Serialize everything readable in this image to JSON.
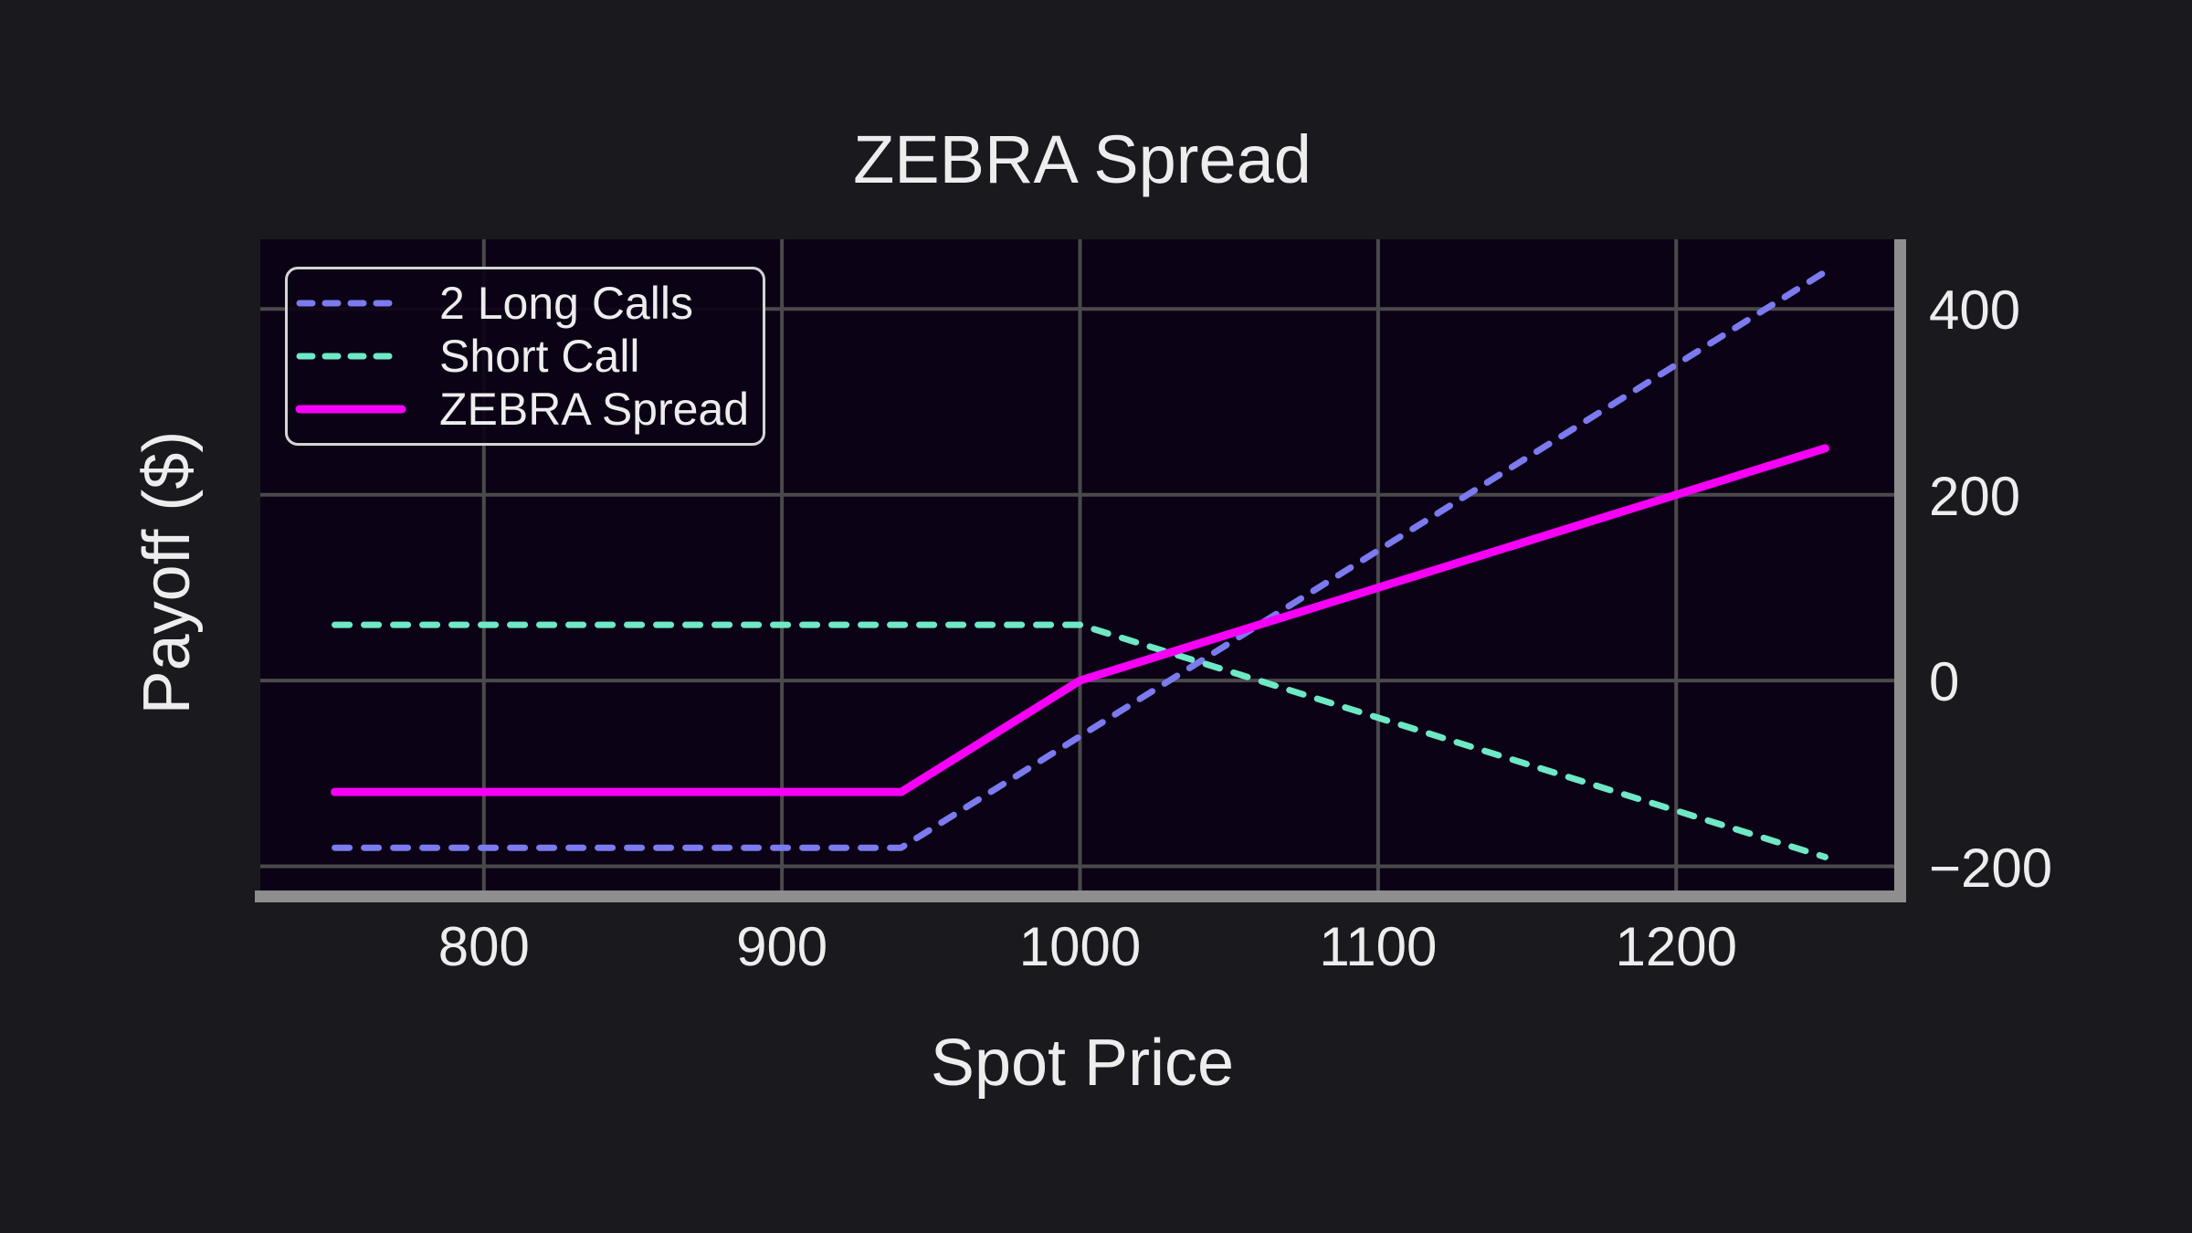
{
  "title": "ZEBRA Spread",
  "axes": {
    "xlabel": "Spot Price",
    "ylabel": "Payoff ($)"
  },
  "legend": {
    "position": "upper left",
    "items": [
      {
        "label": "2 Long Calls",
        "color": "#7b7aee",
        "style": "dashed"
      },
      {
        "label": "Short Call",
        "color": "#6ee8c5",
        "style": "dashed"
      },
      {
        "label": "ZEBRA Spread",
        "color": "#f700f7",
        "style": "solid"
      }
    ]
  },
  "chart_data": {
    "type": "line",
    "title": "ZEBRA Spread",
    "xlabel": "Spot Price",
    "ylabel": "Payoff ($)",
    "xlim": [
      725,
      1275
    ],
    "ylim": [
      -226,
      475
    ],
    "x_ticks": [
      800,
      900,
      1000,
      1100,
      1200
    ],
    "x_tick_labels": [
      "800",
      "900",
      "1000",
      "1100",
      "1200"
    ],
    "y_ticks": [
      400,
      200,
      0,
      -200
    ],
    "y_tick_labels": [
      "400",
      "200",
      "0",
      "−200"
    ],
    "y_axis_side": "right",
    "grid": true,
    "legend_position": "upper left",
    "series": [
      {
        "name": "2 Long Calls",
        "color": "#7b7aee",
        "style": "dashed",
        "width": 7,
        "points": [
          [
            750,
            -180
          ],
          [
            940,
            -180
          ],
          [
            1250,
            440
          ]
        ]
      },
      {
        "name": "Short Call",
        "color": "#6ee8c5",
        "style": "dashed",
        "width": 7,
        "points": [
          [
            750,
            60
          ],
          [
            1000,
            60
          ],
          [
            1250,
            -190
          ]
        ]
      },
      {
        "name": "ZEBRA Spread",
        "color": "#f700f7",
        "style": "solid",
        "width": 9,
        "points": [
          [
            750,
            -120
          ],
          [
            940,
            -120
          ],
          [
            1000,
            0
          ],
          [
            1250,
            250
          ]
        ]
      }
    ]
  },
  "colors": {
    "figure_background": "#1a1a1e",
    "axes_background": "#0c0216",
    "grid": "#4a4a4a",
    "spine": "#8e8e8e",
    "text": "#ededed",
    "legend_border": "#d4d4d4"
  }
}
